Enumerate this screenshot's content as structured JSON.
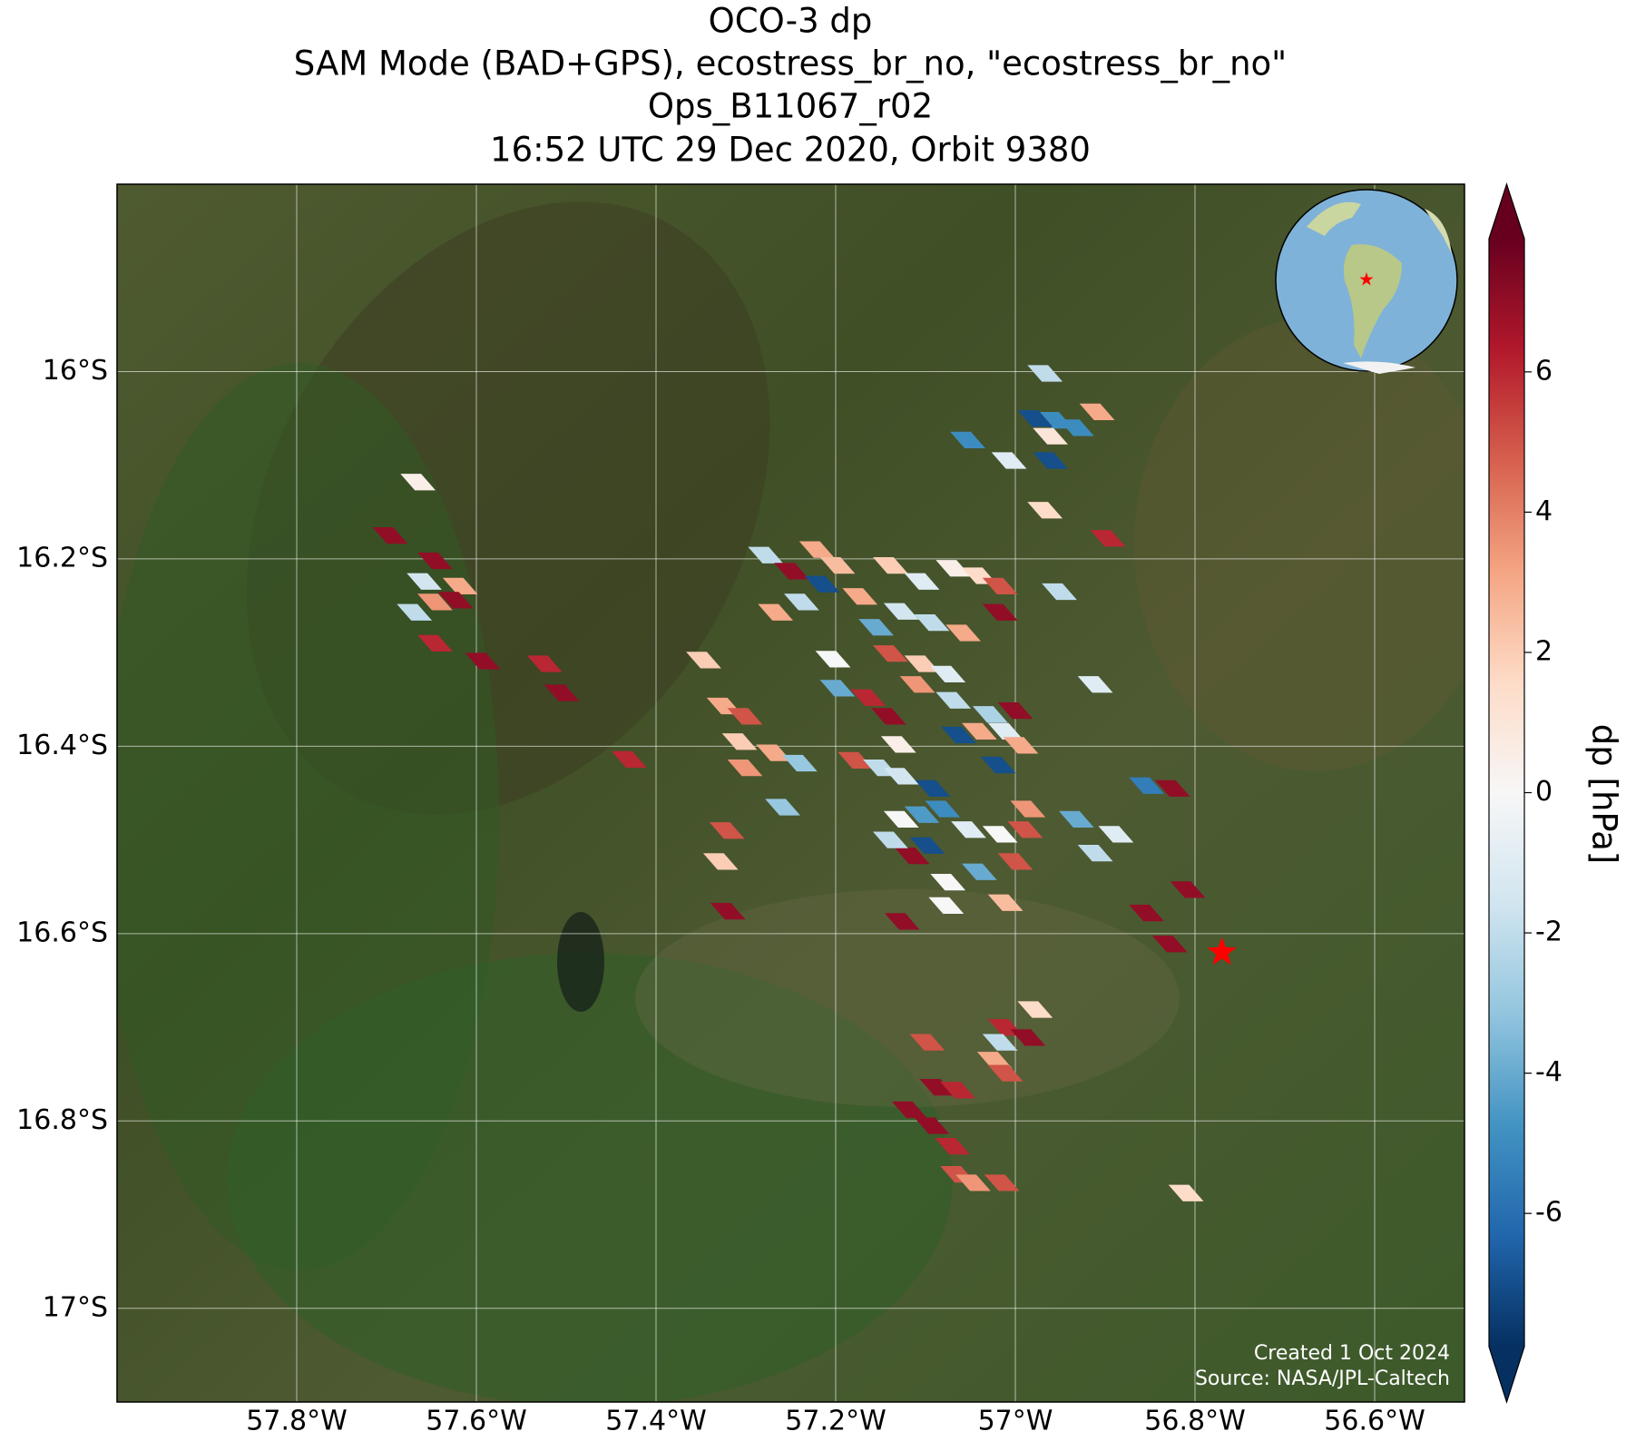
{
  "chart_data": {
    "type": "footprint-map",
    "title_lines": [
      "OCO-3 dp",
      "SAM Mode (BAD+GPS), ecostress_br_no, \"ecostress_br_no\"",
      "Ops_B11067_r02",
      "16:52 UTC 29 Dec 2020, Orbit 9380"
    ],
    "colorbar_label": "dp [hPa]",
    "credits": [
      "Created 1 Oct 2024",
      "Source: NASA/JPL-Caltech"
    ],
    "xlim": [
      -58.0,
      -56.5
    ],
    "ylim": [
      -17.1,
      -15.8
    ],
    "xticks": [
      {
        "value": -57.8,
        "label": "57.8°W"
      },
      {
        "value": -57.6,
        "label": "57.6°W"
      },
      {
        "value": -57.4,
        "label": "57.4°W"
      },
      {
        "value": -57.2,
        "label": "57.2°W"
      },
      {
        "value": -57.0,
        "label": "57°W"
      },
      {
        "value": -56.8,
        "label": "56.8°W"
      },
      {
        "value": -56.6,
        "label": "56.6°W"
      }
    ],
    "yticks": [
      {
        "value": -16.0,
        "label": "16°S"
      },
      {
        "value": -16.2,
        "label": "16.2°S"
      },
      {
        "value": -16.4,
        "label": "16.4°S"
      },
      {
        "value": -16.6,
        "label": "16.6°S"
      },
      {
        "value": -16.8,
        "label": "16.8°S"
      },
      {
        "value": -17.0,
        "label": "17°S"
      }
    ],
    "grid": true,
    "clim": [
      -7.9,
      7.9
    ],
    "cticks": [
      -6,
      -4,
      -2,
      0,
      2,
      4,
      6
    ],
    "colorbar_extend": "both",
    "colormap": [
      "#053061",
      "#2166ac",
      "#4393c3",
      "#92c5de",
      "#d1e5f0",
      "#f7f7f7",
      "#fddbc7",
      "#f4a582",
      "#d6604d",
      "#b2182b",
      "#67001f"
    ],
    "marker": {
      "x": -56.77,
      "y": -16.62,
      "color": "#ff0000"
    },
    "x": [
      -56.967,
      -56.909,
      -56.955,
      -56.978,
      -56.932,
      -57.053,
      -57.007,
      -56.961,
      -56.961,
      -56.967,
      -56.897,
      -57.665,
      -57.696,
      -57.646,
      -57.658,
      -57.618,
      -57.646,
      -57.669,
      -57.623,
      -57.646,
      -57.593,
      -57.524,
      -57.505,
      -57.43,
      -57.278,
      -57.249,
      -57.221,
      -57.198,
      -57.215,
      -57.238,
      -57.267,
      -57.347,
      -57.324,
      -57.301,
      -57.307,
      -57.301,
      -57.269,
      -57.24,
      -57.259,
      -57.321,
      -57.328,
      -57.32,
      -57.203,
      -57.198,
      -57.164,
      -57.141,
      -57.178,
      -57.13,
      -57.15,
      -57.127,
      -57.139,
      -57.104,
      -57.069,
      -57.04,
      -57.017,
      -57.017,
      -57.173,
      -57.155,
      -57.127,
      -57.093,
      -57.058,
      -57.139,
      -57.104,
      -57.075,
      -57.109,
      -57.069,
      -57.028,
      -57.0,
      -57.063,
      -57.04,
      -57.011,
      -56.994,
      -57.019,
      -57.092,
      -57.104,
      -57.081,
      -57.127,
      -57.052,
      -57.017,
      -56.989,
      -57.115,
      -57.098,
      -57.139,
      -57.04,
      -57.0,
      -57.075,
      -57.077,
      -57.011,
      -57.126,
      -56.986,
      -56.932,
      -56.888,
      -56.911,
      -56.854,
      -56.825,
      -56.808,
      -56.854,
      -56.828,
      -56.951,
      -56.911,
      -56.978,
      -57.011,
      -56.986,
      -57.017,
      -57.023,
      -57.011,
      -57.098,
      -57.118,
      -57.087,
      -57.064,
      -57.093,
      -57.07,
      -57.064,
      -57.047,
      -57.015,
      -56.81
    ],
    "y": [
      -16.002,
      -16.043,
      -16.052,
      -16.05,
      -16.06,
      -16.073,
      -16.095,
      -16.069,
      -16.095,
      -16.148,
      -16.178,
      -16.118,
      -16.175,
      -16.202,
      -16.224,
      -16.229,
      -16.246,
      -16.257,
      -16.244,
      -16.29,
      -16.309,
      -16.312,
      -16.343,
      -16.414,
      -16.196,
      -16.213,
      -16.19,
      -16.207,
      -16.227,
      -16.246,
      -16.257,
      -16.308,
      -16.357,
      -16.368,
      -16.395,
      -16.423,
      -16.407,
      -16.418,
      -16.465,
      -16.49,
      -16.523,
      -16.576,
      -16.307,
      -16.338,
      -16.348,
      -16.368,
      -16.415,
      -16.398,
      -16.423,
      -16.432,
      -16.207,
      -16.224,
      -16.21,
      -16.218,
      -16.229,
      -16.257,
      -16.24,
      -16.273,
      -16.256,
      -16.268,
      -16.279,
      -16.301,
      -16.312,
      -16.323,
      -16.334,
      -16.351,
      -16.366,
      -16.362,
      -16.388,
      -16.384,
      -16.384,
      -16.399,
      -16.42,
      -16.445,
      -16.473,
      -16.467,
      -16.478,
      -16.489,
      -16.494,
      -16.489,
      -16.517,
      -16.506,
      -16.5,
      -16.534,
      -16.523,
      -16.545,
      -16.57,
      -16.567,
      -16.587,
      -16.467,
      -16.478,
      -16.494,
      -16.514,
      -16.442,
      -16.445,
      -16.553,
      -16.578,
      -16.611,
      -16.235,
      -16.334,
      -16.681,
      -16.7,
      -16.711,
      -16.716,
      -16.735,
      -16.749,
      -16.716,
      -16.788,
      -16.764,
      -16.767,
      -16.805,
      -16.827,
      -16.857,
      -16.866,
      -16.866,
      -16.877
    ],
    "values": [
      -2,
      3,
      -5,
      -7,
      -5,
      -5,
      -1,
      1,
      -7,
      1.5,
      6,
      0.5,
      7,
      7,
      -1.5,
      3,
      3.5,
      -2,
      7,
      6,
      7,
      6,
      7,
      6,
      -2,
      7,
      3,
      2.5,
      -7,
      -2,
      3,
      2,
      3,
      5,
      2,
      3.5,
      3,
      -3,
      -3,
      5,
      2,
      7,
      0,
      -4,
      6,
      7,
      5,
      0.5,
      -2,
      -1.5,
      2,
      -1,
      0.5,
      1.5,
      5,
      7,
      3,
      -4,
      -1.5,
      -2,
      3,
      5,
      2,
      -1,
      3.5,
      -2,
      -2.5,
      7,
      -7,
      3,
      -1,
      3,
      -7,
      -7,
      -4.5,
      -5,
      0,
      -1,
      0,
      5,
      7,
      -7,
      -2,
      -4,
      5,
      0,
      0,
      2.5,
      7,
      3.5,
      -4,
      -1,
      -2,
      -5.5,
      7,
      7,
      7,
      7,
      -2,
      -1,
      1.5,
      6,
      7,
      -2,
      3,
      5,
      5,
      7,
      7,
      6,
      7,
      6,
      5,
      3.5,
      5,
      1.5
    ]
  }
}
